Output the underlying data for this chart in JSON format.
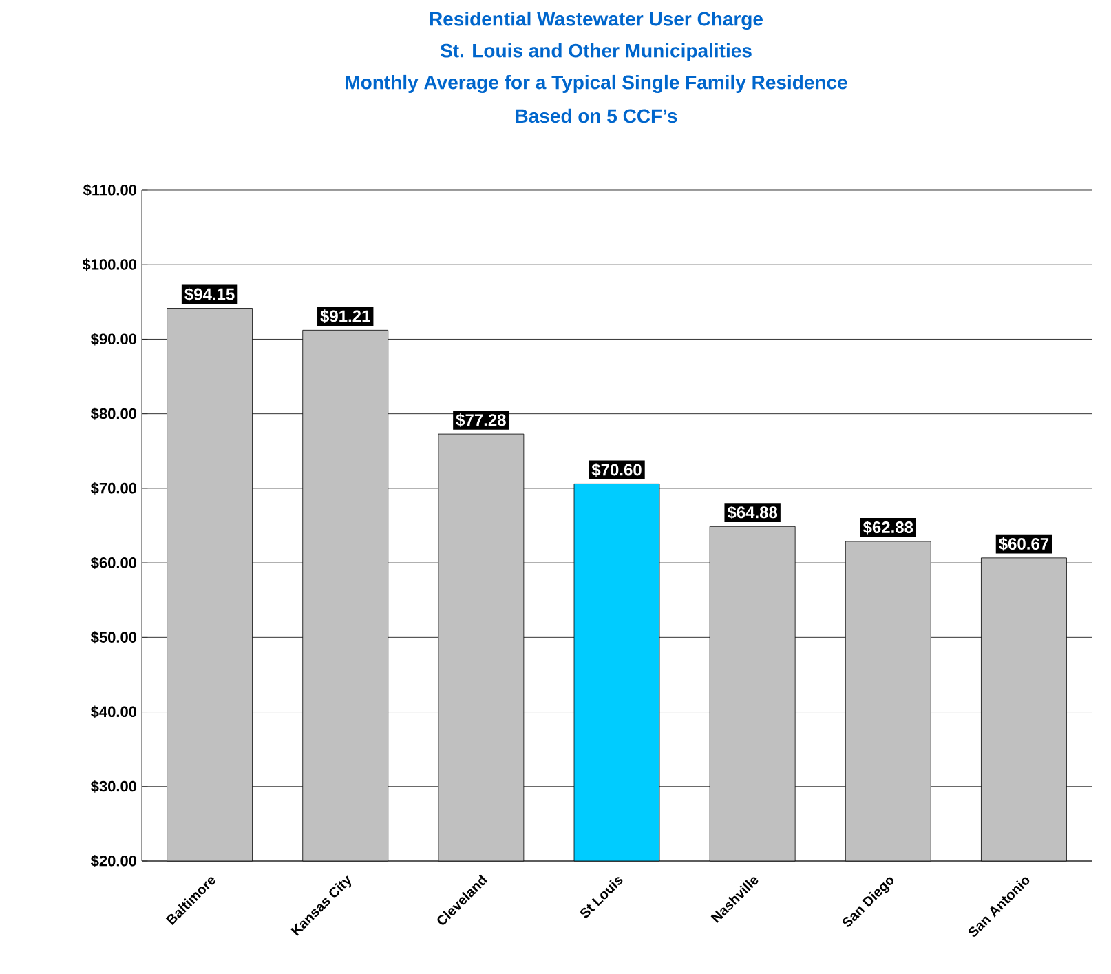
{
  "chart_data": {
    "type": "bar",
    "title": "Residential Wastewater User Charge",
    "subtitle": "St. Louis and Other Municipalities",
    "annotations": [
      "Monthly Average for a Typical Single Family Residence",
      "Based on 5 CCF’s"
    ],
    "categories": [
      "Baltimore",
      "Kansas City",
      "Cleveland",
      "St Louis",
      "Nashville",
      "San Diego",
      "San Antonio"
    ],
    "values": [
      94.15,
      91.21,
      77.28,
      70.6,
      64.88,
      62.88,
      60.67
    ],
    "value_labels": [
      "$94.15",
      "$91.21",
      "$77.28",
      "$70.60",
      "$64.88",
      "$62.88",
      "$60.67"
    ],
    "colors": [
      "#c0c0c0",
      "#c0c0c0",
      "#c0c0c0",
      "#00ccff",
      "#c0c0c0",
      "#c0c0c0",
      "#c0c0c0"
    ],
    "ylim": [
      20,
      110
    ],
    "yticks": [
      {
        "value": 20,
        "label": "$20.00"
      },
      {
        "value": 30,
        "label": "$30.00"
      },
      {
        "value": 40,
        "label": "$40.00"
      },
      {
        "value": 50,
        "label": "$50.00"
      },
      {
        "value": 60,
        "label": "$60.00"
      },
      {
        "value": 70,
        "label": "$70.00"
      },
      {
        "value": 80,
        "label": "$80.00"
      },
      {
        "value": 90,
        "label": "$90.00"
      },
      {
        "value": 100,
        "label": "$100.00"
      },
      {
        "value": 110,
        "label": "$110.00"
      }
    ],
    "grid": "y"
  }
}
